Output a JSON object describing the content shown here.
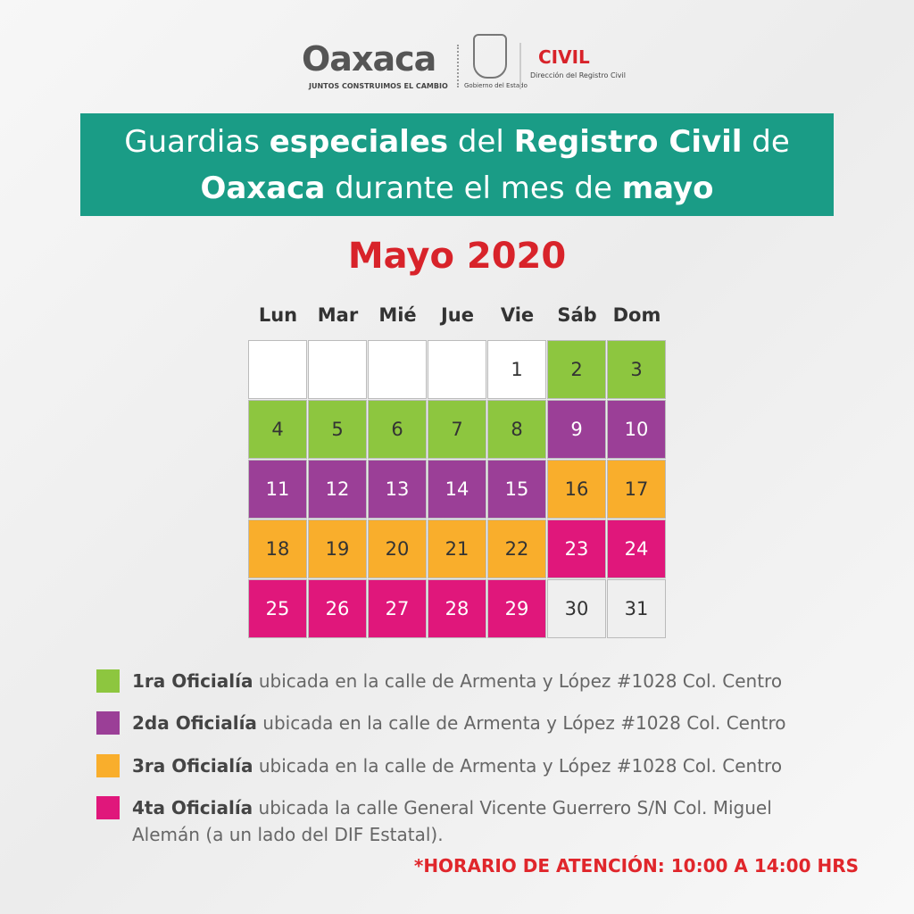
{
  "header": {
    "brand": "Oaxaca",
    "slogan": "JUNTOS CONSTRUIMOS EL CAMBIO",
    "government": "Gobierno del Estado",
    "civil": "CIVIL",
    "directorate": "Dirección del Registro Civil"
  },
  "title": {
    "lines": [
      [
        {
          "text": "Guardias ",
          "bold": false
        },
        {
          "text": "especiales",
          "bold": true
        },
        {
          "text": " del ",
          "bold": false
        },
        {
          "text": "Registro Civil",
          "bold": true
        },
        {
          "text": " de",
          "bold": false
        }
      ],
      [
        {
          "text": "Oaxaca",
          "bold": true
        },
        {
          "text": " durante el mes de ",
          "bold": false
        },
        {
          "text": "mayo",
          "bold": true
        }
      ]
    ],
    "background": "#1a9c86"
  },
  "month": "Mayo 2020",
  "weekdays": [
    "Lun",
    "Mar",
    "Mié",
    "Jue",
    "Vie",
    "Sáb",
    "Dom"
  ],
  "calendar": {
    "weeks": [
      [
        null,
        null,
        null,
        null,
        {
          "day": 1,
          "color": "#ffffff"
        },
        {
          "day": 2,
          "color": "#8dc63f"
        },
        {
          "day": 3,
          "color": "#8dc63f"
        }
      ],
      [
        {
          "day": 4,
          "color": "#8dc63f"
        },
        {
          "day": 5,
          "color": "#8dc63f"
        },
        {
          "day": 6,
          "color": "#8dc63f"
        },
        {
          "day": 7,
          "color": "#8dc63f"
        },
        {
          "day": 8,
          "color": "#8dc63f"
        },
        {
          "day": 9,
          "color": "#9b3f97"
        },
        {
          "day": 10,
          "color": "#9b3f97"
        }
      ],
      [
        {
          "day": 11,
          "color": "#9b3f97"
        },
        {
          "day": 12,
          "color": "#9b3f97"
        },
        {
          "day": 13,
          "color": "#9b3f97"
        },
        {
          "day": 14,
          "color": "#9b3f97"
        },
        {
          "day": 15,
          "color": "#9b3f97"
        },
        {
          "day": 16,
          "color": "#f9ae2c"
        },
        {
          "day": 17,
          "color": "#f9ae2c"
        }
      ],
      [
        {
          "day": 18,
          "color": "#f9ae2c"
        },
        {
          "day": 19,
          "color": "#f9ae2c"
        },
        {
          "day": 20,
          "color": "#f9ae2c"
        },
        {
          "day": 21,
          "color": "#f9ae2c"
        },
        {
          "day": 22,
          "color": "#f9ae2c"
        },
        {
          "day": 23,
          "color": "#e0177b"
        },
        {
          "day": 24,
          "color": "#e0177b"
        }
      ],
      [
        {
          "day": 25,
          "color": "#e0177b"
        },
        {
          "day": 26,
          "color": "#e0177b"
        },
        {
          "day": 27,
          "color": "#e0177b"
        },
        {
          "day": 28,
          "color": "#e0177b"
        },
        {
          "day": 29,
          "color": "#e0177b"
        },
        {
          "day": 30,
          "color": "#efefef"
        },
        {
          "day": 31,
          "color": "#efefef"
        }
      ]
    ]
  },
  "legend": [
    {
      "color": "#8dc63f",
      "name": "1ra Oficialía",
      "text": " ubicada en la calle de Armenta y López #1028 Col. Centro"
    },
    {
      "color": "#9b3f97",
      "name": "2da Oficialía",
      "text": " ubicada en la calle de Armenta y López #1028 Col. Centro"
    },
    {
      "color": "#f9ae2c",
      "name": "3ra Oficialía",
      "text": " ubicada en la calle de Armenta y López #1028 Col. Centro"
    },
    {
      "color": "#e0177b",
      "name": "4ta Oficialía",
      "text": " ubicada la calle General Vicente Guerrero S/N Col. Miguel Alemán (a un lado del DIF Estatal)."
    }
  ],
  "note": "*HORARIO DE ATENCIÓN: 10:00 A 14:00 HRS"
}
